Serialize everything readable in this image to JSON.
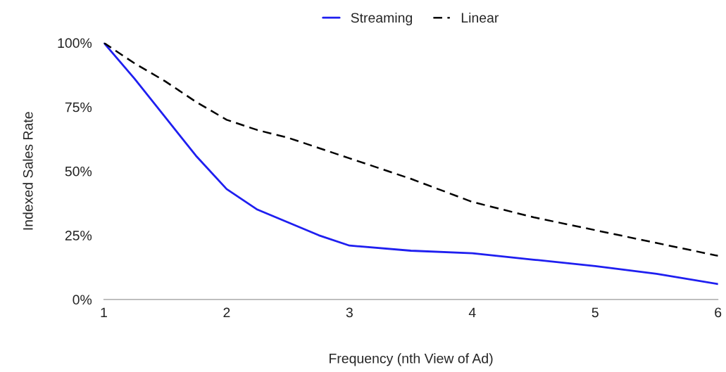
{
  "chart_data": {
    "type": "line",
    "xlabel": "Frequency (nth View of Ad)",
    "ylabel": "Indexed Sales Rate",
    "x": [
      1,
      1.25,
      1.5,
      1.75,
      2,
      2.25,
      2.5,
      2.75,
      3,
      3.5,
      4,
      4.5,
      5,
      5.5,
      6
    ],
    "series": [
      {
        "name": "Streaming",
        "color": "#1f1ff0",
        "values": [
          100,
          86,
          71,
          56,
          43,
          35,
          30,
          25,
          21,
          19,
          18,
          15.5,
          13,
          10,
          6
        ],
        "line_style": "solid"
      },
      {
        "name": "Linear",
        "color": "#000000",
        "values": [
          100,
          92,
          85,
          77,
          70,
          66,
          63,
          59,
          55,
          47,
          38,
          32,
          27,
          22,
          17
        ],
        "line_style": "dashed"
      }
    ],
    "xlim": [
      1,
      6
    ],
    "xticks": [
      1,
      2,
      3,
      4,
      5,
      6
    ],
    "ylim": [
      0,
      100
    ],
    "yticks": [
      {
        "value": 0,
        "label": "0%"
      },
      {
        "value": 25,
        "label": "25%"
      },
      {
        "value": 50,
        "label": "50%"
      },
      {
        "value": 75,
        "label": "75%"
      },
      {
        "value": 100,
        "label": "100%"
      }
    ],
    "grid": false,
    "legend": "top",
    "marker": "none"
  }
}
